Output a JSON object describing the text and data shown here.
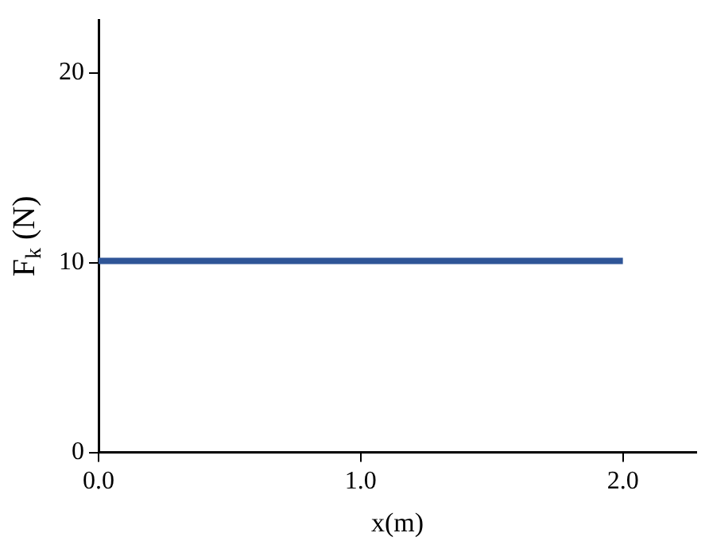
{
  "chart_data": {
    "type": "line",
    "xlabel": "x(m)",
    "ylabel": "F$_{k}$ (N)",
    "x": [
      0,
      2
    ],
    "series": [
      {
        "color": "#2f5597",
        "values": [
          10.1,
          10.1
        ]
      }
    ],
    "xlim": [
      0,
      2.28
    ],
    "xticks": [
      {
        "value": 0,
        "label": "0.0"
      },
      {
        "value": 1,
        "label": "1.0"
      },
      {
        "value": 2,
        "label": "2.0"
      }
    ],
    "ylim": [
      0,
      22.8
    ],
    "yticks": [
      0,
      10,
      20
    ],
    "grid": false,
    "legend": false,
    "marker": "none",
    "line_style": "solid"
  }
}
